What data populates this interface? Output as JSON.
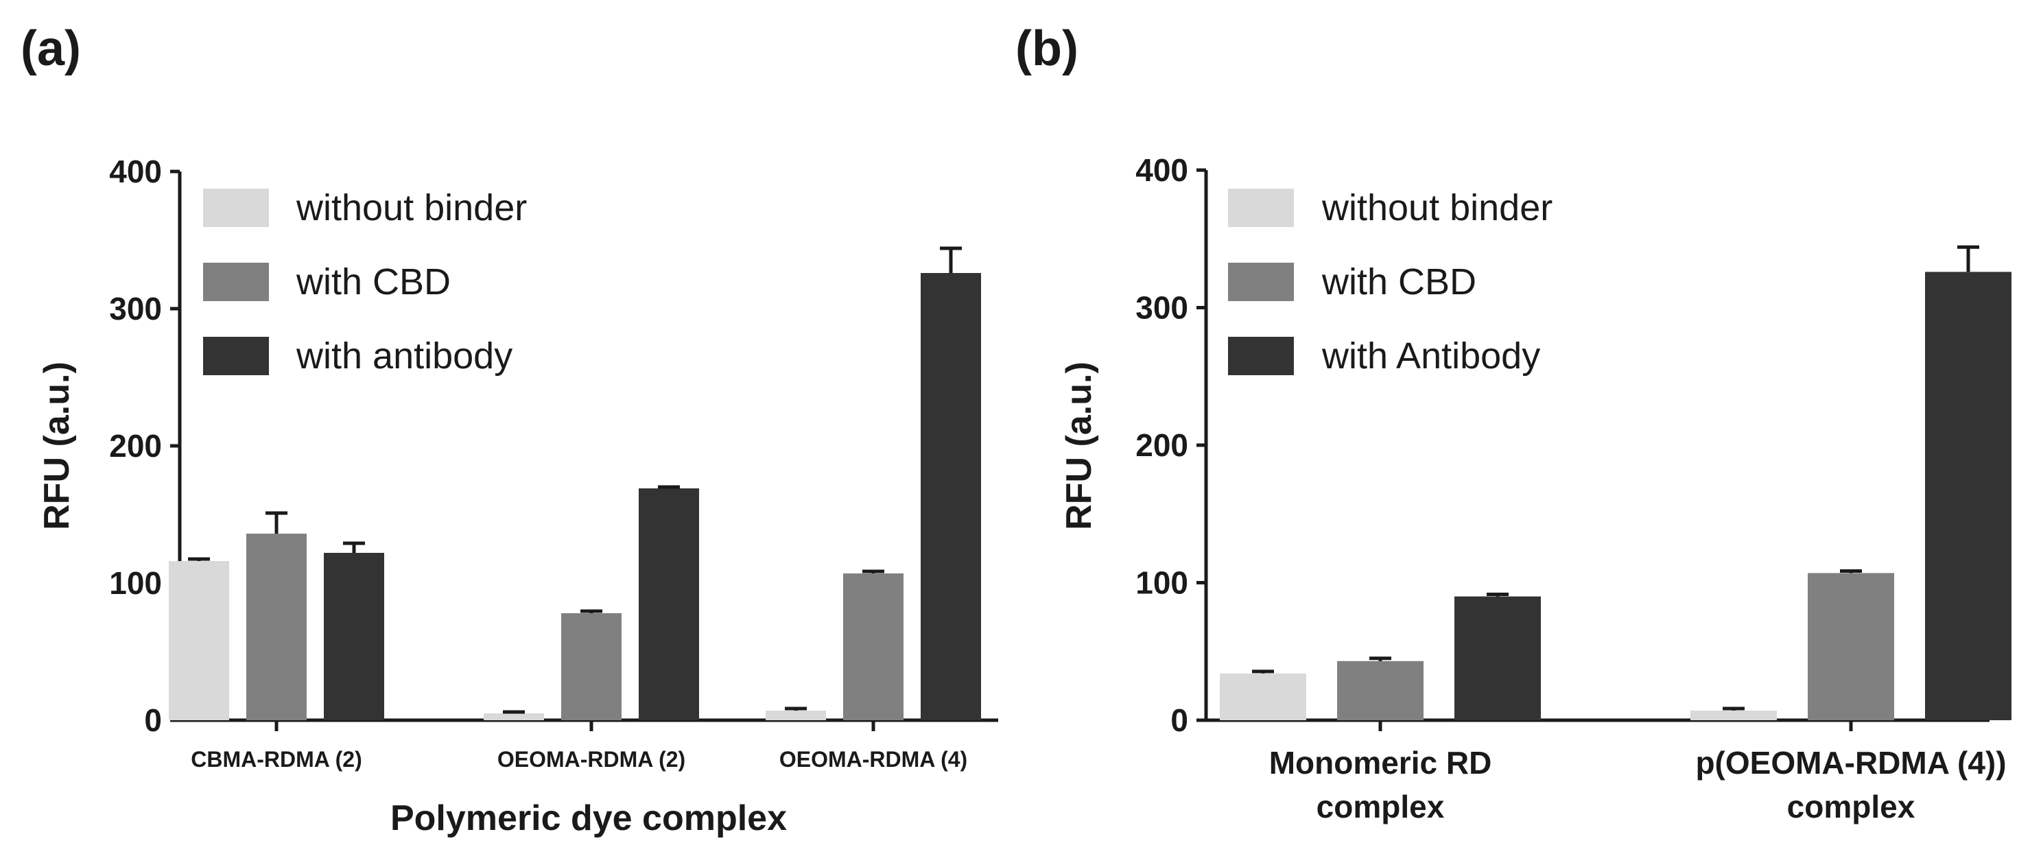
{
  "chart_data": [
    {
      "panel_label": "(a)",
      "type": "bar",
      "title": "",
      "xlabel": "Polymeric dye complex",
      "ylabel": "RFU (a.u.)",
      "ylim": [
        0,
        400
      ],
      "yticks": [
        "0",
        "100",
        "200",
        "300",
        "400"
      ],
      "categories": [
        "CBMA-RDMA (2)",
        "OEOMA-RDMA (2)",
        "OEOMA-RDMA (4)"
      ],
      "legend_position": "top-left",
      "series": [
        {
          "name": "without binder",
          "color": "#d9d9d9",
          "values": [
            116,
            5,
            7
          ],
          "errors": [
            1.5,
            1,
            1.5
          ]
        },
        {
          "name": "with CBD",
          "color": "#808080",
          "values": [
            136,
            78,
            107
          ],
          "errors": [
            15,
            1.5,
            1.5
          ]
        },
        {
          "name": "with antibody",
          "color": "#333333",
          "values": [
            122,
            169,
            326
          ],
          "errors": [
            7,
            1,
            18
          ]
        }
      ]
    },
    {
      "panel_label": "(b)",
      "type": "bar",
      "title": "",
      "xlabel": "",
      "ylabel": "RFU (a.u.)",
      "ylim": [
        0,
        400
      ],
      "yticks": [
        "0",
        "100",
        "200",
        "300",
        "400"
      ],
      "categories": [
        [
          "Monomeric RD",
          "complex"
        ],
        [
          "p(OEOMA-RDMA (4))",
          "complex"
        ]
      ],
      "legend_position": "top-left",
      "series": [
        {
          "name": "without binder",
          "color": "#d9d9d9",
          "values": [
            34,
            7
          ],
          "errors": [
            1.5,
            1.5
          ]
        },
        {
          "name": "with CBD",
          "color": "#808080",
          "values": [
            43,
            107
          ],
          "errors": [
            2,
            1.5
          ]
        },
        {
          "name": "with Antibody",
          "color": "#333333",
          "values": [
            90,
            326
          ],
          "errors": [
            1.5,
            18
          ]
        }
      ]
    }
  ]
}
